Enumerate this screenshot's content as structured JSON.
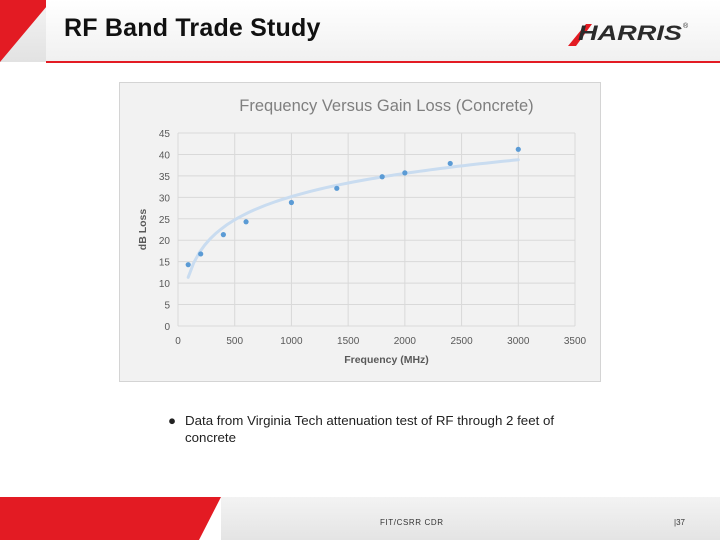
{
  "slide": {
    "title": "RF Band Trade Study",
    "logo_text": "HARRIS",
    "logo_mark": "®",
    "bullet_symbol": "●",
    "bullet_text": "Data from Virginia Tech attenuation test of RF through 2 feet of concrete",
    "footer_center": "FIT/CSRR CDR",
    "footer_page": "|37"
  },
  "colors": {
    "brand_red": "#e31b23",
    "point_color": "#5b9bd5",
    "trend_color": "#c9dcf0"
  },
  "chart_data": {
    "type": "scatter",
    "title": "Frequency Versus Gain Loss (Concrete)",
    "xlabel": "Frequency (MHz)",
    "ylabel": "dB Loss",
    "xlim": [
      0,
      3500
    ],
    "ylim": [
      0,
      45
    ],
    "x_ticks": [
      0,
      500,
      1000,
      1500,
      2000,
      2500,
      3000,
      3500
    ],
    "y_ticks": [
      0,
      5,
      10,
      15,
      20,
      25,
      30,
      35,
      40,
      45
    ],
    "grid": true,
    "trendline": "logarithmic",
    "x": [
      90,
      200,
      400,
      600,
      1000,
      1400,
      1800,
      2000,
      2400,
      3000
    ],
    "y": [
      14.3,
      16.8,
      21.3,
      24.3,
      28.8,
      32.1,
      34.8,
      35.7,
      37.9,
      41.2
    ]
  }
}
